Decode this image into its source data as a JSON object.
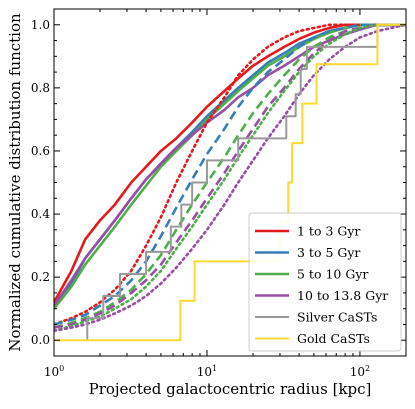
{
  "chart_data": {
    "type": "line",
    "title": "",
    "xlabel": "Projected galactocentric radius [kpc]",
    "ylabel": "Normalized cumulative distribution function",
    "xscale": "log",
    "xlim": [
      1,
      200
    ],
    "ylim": [
      -0.05,
      1.05
    ],
    "x_ticks": [
      {
        "base": "10",
        "exp": "0",
        "value": 1
      },
      {
        "base": "10",
        "exp": "1",
        "value": 10
      },
      {
        "base": "10",
        "exp": "2",
        "value": 100
      }
    ],
    "y_ticks": [
      {
        "label": "0.0",
        "value": 0.0
      },
      {
        "label": "0.2",
        "value": 0.2
      },
      {
        "label": "0.4",
        "value": 0.4
      },
      {
        "label": "0.6",
        "value": 0.6
      },
      {
        "label": "0.8",
        "value": 0.8
      },
      {
        "label": "1.0",
        "value": 1.0
      }
    ],
    "legend_position": "lower-right",
    "series": [
      {
        "name": "1 to 3 Gyr",
        "color": "#e41a1c",
        "style": "solid",
        "width": 2.6,
        "legend": true,
        "points": [
          [
            1,
            0.12
          ],
          [
            1.3,
            0.22
          ],
          [
            1.6,
            0.32
          ],
          [
            2.0,
            0.38
          ],
          [
            2.5,
            0.43
          ],
          [
            3.2,
            0.5
          ],
          [
            4.0,
            0.55
          ],
          [
            5.0,
            0.6
          ],
          [
            6.3,
            0.64
          ],
          [
            8.0,
            0.69
          ],
          [
            10,
            0.74
          ],
          [
            13,
            0.79
          ],
          [
            16,
            0.83
          ],
          [
            20,
            0.87
          ],
          [
            25,
            0.9
          ],
          [
            32,
            0.93
          ],
          [
            40,
            0.955
          ],
          [
            50,
            0.975
          ],
          [
            63,
            0.99
          ],
          [
            80,
            1.0
          ],
          [
            200,
            1.0
          ]
        ]
      },
      {
        "name": "3 to 5 Gyr",
        "color": "#377eb8",
        "style": "solid",
        "width": 2.6,
        "legend": true,
        "points": [
          [
            1,
            0.1
          ],
          [
            1.3,
            0.18
          ],
          [
            1.6,
            0.26
          ],
          [
            2.0,
            0.32
          ],
          [
            2.5,
            0.38
          ],
          [
            3.2,
            0.45
          ],
          [
            4.0,
            0.51
          ],
          [
            5.0,
            0.56
          ],
          [
            6.3,
            0.61
          ],
          [
            8.0,
            0.66
          ],
          [
            10,
            0.71
          ],
          [
            13,
            0.76
          ],
          [
            16,
            0.8
          ],
          [
            20,
            0.84
          ],
          [
            25,
            0.88
          ],
          [
            32,
            0.91
          ],
          [
            40,
            0.94
          ],
          [
            50,
            0.96
          ],
          [
            63,
            0.98
          ],
          [
            80,
            0.99
          ],
          [
            100,
            1.0
          ],
          [
            200,
            1.0
          ]
        ]
      },
      {
        "name": "5 to 10 Gyr",
        "color": "#4daf4a",
        "style": "solid",
        "width": 2.6,
        "legend": true,
        "points": [
          [
            1,
            0.1
          ],
          [
            1.3,
            0.17
          ],
          [
            1.6,
            0.24
          ],
          [
            2.0,
            0.3
          ],
          [
            2.5,
            0.36
          ],
          [
            3.2,
            0.43
          ],
          [
            4.0,
            0.49
          ],
          [
            5.0,
            0.55
          ],
          [
            6.3,
            0.6
          ],
          [
            8.0,
            0.65
          ],
          [
            10,
            0.7
          ],
          [
            13,
            0.75
          ],
          [
            16,
            0.79
          ],
          [
            20,
            0.83
          ],
          [
            25,
            0.87
          ],
          [
            32,
            0.9
          ],
          [
            40,
            0.93
          ],
          [
            50,
            0.955
          ],
          [
            63,
            0.975
          ],
          [
            80,
            0.99
          ],
          [
            100,
            1.0
          ],
          [
            200,
            1.0
          ]
        ]
      },
      {
        "name": "10 to 13.8 Gyr",
        "color": "#984ea3",
        "style": "solid",
        "width": 2.6,
        "legend": true,
        "points": [
          [
            1,
            0.11
          ],
          [
            1.3,
            0.19
          ],
          [
            1.6,
            0.26
          ],
          [
            2.0,
            0.32
          ],
          [
            2.5,
            0.38
          ],
          [
            3.2,
            0.45
          ],
          [
            4.0,
            0.51
          ],
          [
            5.0,
            0.56
          ],
          [
            6.3,
            0.61
          ],
          [
            8.0,
            0.65
          ],
          [
            10,
            0.69
          ],
          [
            13,
            0.73
          ],
          [
            16,
            0.77
          ],
          [
            20,
            0.8
          ],
          [
            25,
            0.84
          ],
          [
            32,
            0.87
          ],
          [
            40,
            0.9
          ],
          [
            50,
            0.93
          ],
          [
            63,
            0.95
          ],
          [
            80,
            0.97
          ],
          [
            100,
            0.985
          ],
          [
            130,
            1.0
          ],
          [
            200,
            1.0
          ]
        ]
      },
      {
        "name": "",
        "color": "#e41a1c",
        "style": "dotted",
        "width": 2.6,
        "legend": false,
        "points": [
          [
            1,
            0.05
          ],
          [
            1.3,
            0.07
          ],
          [
            1.6,
            0.09
          ],
          [
            2.0,
            0.12
          ],
          [
            2.5,
            0.16
          ],
          [
            3.2,
            0.22
          ],
          [
            4.0,
            0.3
          ],
          [
            5.0,
            0.39
          ],
          [
            6.3,
            0.5
          ],
          [
            8.0,
            0.6
          ],
          [
            10,
            0.69
          ],
          [
            13,
            0.77
          ],
          [
            16,
            0.84
          ],
          [
            20,
            0.89
          ],
          [
            25,
            0.93
          ],
          [
            32,
            0.96
          ],
          [
            40,
            0.98
          ],
          [
            50,
            0.99
          ],
          [
            63,
            1.0
          ],
          [
            200,
            1.0
          ]
        ]
      },
      {
        "name": "",
        "color": "#377eb8",
        "style": "dashed",
        "width": 2.6,
        "legend": false,
        "points": [
          [
            1,
            0.05
          ],
          [
            1.3,
            0.065
          ],
          [
            1.6,
            0.08
          ],
          [
            2.0,
            0.11
          ],
          [
            2.5,
            0.14
          ],
          [
            3.2,
            0.19
          ],
          [
            4.0,
            0.25
          ],
          [
            5.0,
            0.33
          ],
          [
            6.3,
            0.42
          ],
          [
            8.0,
            0.51
          ],
          [
            10,
            0.59
          ],
          [
            13,
            0.67
          ],
          [
            16,
            0.74
          ],
          [
            20,
            0.8
          ],
          [
            25,
            0.85
          ],
          [
            32,
            0.89
          ],
          [
            40,
            0.93
          ],
          [
            50,
            0.96
          ],
          [
            63,
            0.98
          ],
          [
            80,
            0.99
          ],
          [
            100,
            1.0
          ],
          [
            200,
            1.0
          ]
        ]
      },
      {
        "name": "",
        "color": "#4daf4a",
        "style": "dashed",
        "width": 2.6,
        "legend": false,
        "points": [
          [
            1,
            0.04
          ],
          [
            1.3,
            0.055
          ],
          [
            1.6,
            0.07
          ],
          [
            2.0,
            0.09
          ],
          [
            2.5,
            0.12
          ],
          [
            3.2,
            0.16
          ],
          [
            4.0,
            0.21
          ],
          [
            5.0,
            0.27
          ],
          [
            6.3,
            0.35
          ],
          [
            8.0,
            0.43
          ],
          [
            10,
            0.5
          ],
          [
            13,
            0.58
          ],
          [
            16,
            0.65
          ],
          [
            20,
            0.72
          ],
          [
            25,
            0.78
          ],
          [
            32,
            0.84
          ],
          [
            40,
            0.89
          ],
          [
            50,
            0.93
          ],
          [
            63,
            0.96
          ],
          [
            80,
            0.98
          ],
          [
            100,
            0.99
          ],
          [
            130,
            1.0
          ],
          [
            200,
            1.0
          ]
        ]
      },
      {
        "name": "",
        "color": "#984ea3",
        "style": "dashed",
        "width": 2.6,
        "legend": false,
        "points": [
          [
            1,
            0.04
          ],
          [
            1.3,
            0.05
          ],
          [
            1.6,
            0.065
          ],
          [
            2.0,
            0.085
          ],
          [
            2.5,
            0.11
          ],
          [
            3.2,
            0.15
          ],
          [
            4.0,
            0.19
          ],
          [
            5.0,
            0.24
          ],
          [
            6.3,
            0.31
          ],
          [
            8.0,
            0.38
          ],
          [
            10,
            0.45
          ],
          [
            13,
            0.53
          ],
          [
            16,
            0.6
          ],
          [
            20,
            0.67
          ],
          [
            25,
            0.74
          ],
          [
            32,
            0.8
          ],
          [
            40,
            0.86
          ],
          [
            50,
            0.91
          ],
          [
            63,
            0.95
          ],
          [
            80,
            0.98
          ],
          [
            100,
            0.99
          ],
          [
            130,
            1.0
          ],
          [
            200,
            1.0
          ]
        ]
      },
      {
        "name": "",
        "color": "#4daf4a",
        "style": "dotted",
        "width": 2.6,
        "legend": false,
        "points": [
          [
            1,
            0.03
          ],
          [
            1.3,
            0.045
          ],
          [
            1.6,
            0.06
          ],
          [
            2.0,
            0.075
          ],
          [
            2.5,
            0.1
          ],
          [
            3.2,
            0.13
          ],
          [
            4.0,
            0.17
          ],
          [
            5.0,
            0.22
          ],
          [
            6.3,
            0.29
          ],
          [
            8.0,
            0.36
          ],
          [
            10,
            0.43
          ],
          [
            13,
            0.51
          ],
          [
            16,
            0.58
          ],
          [
            20,
            0.65
          ],
          [
            25,
            0.72
          ],
          [
            32,
            0.79
          ],
          [
            40,
            0.85
          ],
          [
            50,
            0.9
          ],
          [
            63,
            0.94
          ],
          [
            80,
            0.97
          ],
          [
            100,
            0.99
          ],
          [
            130,
            1.0
          ],
          [
            200,
            1.0
          ]
        ]
      },
      {
        "name": "",
        "color": "#984ea3",
        "style": "dotted",
        "width": 2.6,
        "legend": false,
        "points": [
          [
            1,
            0.03
          ],
          [
            1.3,
            0.04
          ],
          [
            1.6,
            0.05
          ],
          [
            2.0,
            0.065
          ],
          [
            2.5,
            0.085
          ],
          [
            3.2,
            0.11
          ],
          [
            4.0,
            0.14
          ],
          [
            5.0,
            0.18
          ],
          [
            6.3,
            0.23
          ],
          [
            8.0,
            0.29
          ],
          [
            10,
            0.35
          ],
          [
            13,
            0.43
          ],
          [
            16,
            0.5
          ],
          [
            20,
            0.57
          ],
          [
            25,
            0.64
          ],
          [
            32,
            0.71
          ],
          [
            40,
            0.78
          ],
          [
            50,
            0.84
          ],
          [
            63,
            0.89
          ],
          [
            80,
            0.93
          ],
          [
            100,
            0.96
          ],
          [
            130,
            0.98
          ],
          [
            160,
            0.99
          ],
          [
            200,
            1.0
          ]
        ]
      },
      {
        "name": "Silver CaSTs",
        "color": "#999999",
        "style": "step",
        "width": 2.0,
        "legend": true,
        "points": [
          [
            1.65,
            0.0
          ],
          [
            1.65,
            0.07
          ],
          [
            2.1,
            0.07
          ],
          [
            2.1,
            0.14
          ],
          [
            2.7,
            0.14
          ],
          [
            2.7,
            0.21
          ],
          [
            4.0,
            0.21
          ],
          [
            4.0,
            0.28
          ],
          [
            5.8,
            0.28
          ],
          [
            5.8,
            0.36
          ],
          [
            6.8,
            0.36
          ],
          [
            6.8,
            0.43
          ],
          [
            8.0,
            0.43
          ],
          [
            8.0,
            0.5
          ],
          [
            10,
            0.5
          ],
          [
            10,
            0.57
          ],
          [
            16,
            0.57
          ],
          [
            16,
            0.64
          ],
          [
            33,
            0.64
          ],
          [
            33,
            0.71
          ],
          [
            38,
            0.71
          ],
          [
            38,
            0.78
          ],
          [
            41,
            0.78
          ],
          [
            41,
            0.86
          ],
          [
            45,
            0.86
          ],
          [
            45,
            0.93
          ],
          [
            50,
            0.93
          ],
          [
            50,
            0.93
          ],
          [
            130,
            0.93
          ],
          [
            130,
            1.0
          ],
          [
            200,
            1.0
          ]
        ]
      },
      {
        "name": "Gold CaSTs",
        "color": "#ffd92f",
        "style": "step",
        "width": 2.0,
        "legend": true,
        "points": [
          [
            1,
            0.0
          ],
          [
            6.7,
            0.0
          ],
          [
            6.7,
            0.125
          ],
          [
            8.3,
            0.125
          ],
          [
            8.3,
            0.25
          ],
          [
            30,
            0.25
          ],
          [
            30,
            0.375
          ],
          [
            34,
            0.375
          ],
          [
            34,
            0.5
          ],
          [
            36,
            0.5
          ],
          [
            36,
            0.625
          ],
          [
            42,
            0.625
          ],
          [
            42,
            0.75
          ],
          [
            52,
            0.75
          ],
          [
            52,
            0.875
          ],
          [
            130,
            0.875
          ],
          [
            130,
            1.0
          ],
          [
            200,
            1.0
          ]
        ]
      }
    ]
  }
}
